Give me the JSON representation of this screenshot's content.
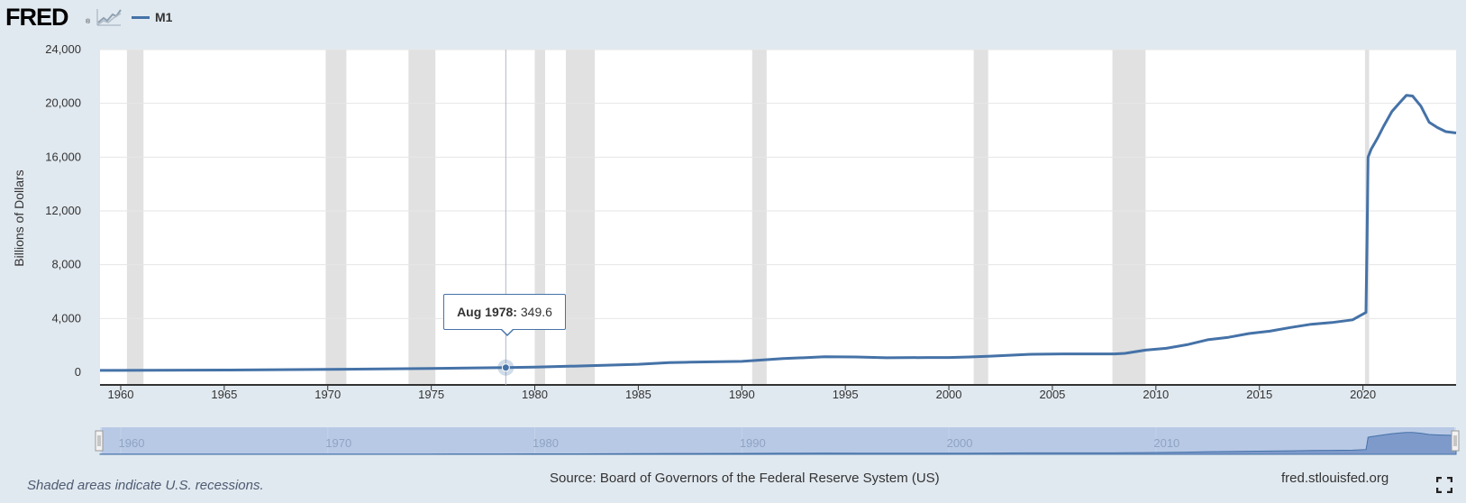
{
  "header": {
    "logo_text": "FRED",
    "logo_reg": "®",
    "legend_label": "M1"
  },
  "tooltip": {
    "date": "Aug 1978:",
    "value": "349.6"
  },
  "footer": {
    "recession_note": "Shaded areas indicate U.S. recessions.",
    "source": "Source: Board of Governors of the Federal Reserve System (US)",
    "site": "fred.stlouisfed.org"
  },
  "colors": {
    "series": "#4572a7",
    "recession": "#e1e1e1",
    "background": "#e1e9f0"
  },
  "icons": {
    "logo_graph": "line-graph-icon",
    "fullscreen": "fullscreen-icon"
  },
  "chart_data": {
    "type": "line",
    "title": "",
    "xlabel": "",
    "ylabel": "Billions of Dollars",
    "xlim": [
      1959.0,
      2024.5
    ],
    "ylim": [
      0,
      24000
    ],
    "yticks": [
      0,
      4000,
      8000,
      12000,
      16000,
      20000,
      24000
    ],
    "ytick_labels": [
      "0",
      "4,000",
      "8,000",
      "12,000",
      "16,000",
      "20,000",
      "24,000"
    ],
    "xticks": [
      1960,
      1965,
      1970,
      1975,
      1980,
      1985,
      1990,
      1995,
      2000,
      2005,
      2010,
      2015,
      2020
    ],
    "navigator_ticks": [
      1960,
      1970,
      1980,
      1990,
      2000,
      2010
    ],
    "grid": true,
    "legend": "top-left",
    "recessions": [
      [
        1960.3,
        1961.1
      ],
      [
        1969.9,
        1970.9
      ],
      [
        1973.9,
        1975.2
      ],
      [
        1980.0,
        1980.5
      ],
      [
        1981.5,
        1982.9
      ],
      [
        1990.5,
        1991.2
      ],
      [
        2001.2,
        2001.9
      ],
      [
        2007.9,
        2009.5
      ],
      [
        2020.1,
        2020.3
      ]
    ],
    "highlight": {
      "x": 1978.6,
      "y": 349.6
    },
    "series": [
      {
        "name": "M1",
        "x": [
          1959.0,
          1965.0,
          1970.0,
          1975.0,
          1978.6,
          1980.0,
          1982.0,
          1985.0,
          1986.5,
          1987.5,
          1990.0,
          1992.0,
          1994.0,
          1995.5,
          1997.0,
          1999.0,
          2000.0,
          2001.0,
          2002.0,
          2004.0,
          2005.5,
          2007.0,
          2008.0,
          2008.5,
          2009.5,
          2010.5,
          2011.5,
          2012.5,
          2013.5,
          2014.5,
          2015.5,
          2016.5,
          2017.5,
          2018.5,
          2019.5,
          2020.15,
          2020.2,
          2020.25,
          2020.4,
          2020.7,
          2021.0,
          2021.4,
          2021.8,
          2022.1,
          2022.4,
          2022.8,
          2023.2,
          2023.6,
          2024.0,
          2024.5
        ],
        "y": [
          140,
          170,
          215,
          290,
          349.6,
          390,
          460,
          600,
          720,
          750,
          810,
          1020,
          1150,
          1140,
          1080,
          1100,
          1100,
          1140,
          1200,
          1340,
          1370,
          1370,
          1370,
          1410,
          1650,
          1780,
          2050,
          2420,
          2600,
          2880,
          3060,
          3330,
          3570,
          3700,
          3900,
          4450,
          10000,
          16000,
          16600,
          17400,
          18300,
          19400,
          20100,
          20600,
          20550,
          19800,
          18600,
          18200,
          17900,
          17800
        ]
      }
    ]
  }
}
